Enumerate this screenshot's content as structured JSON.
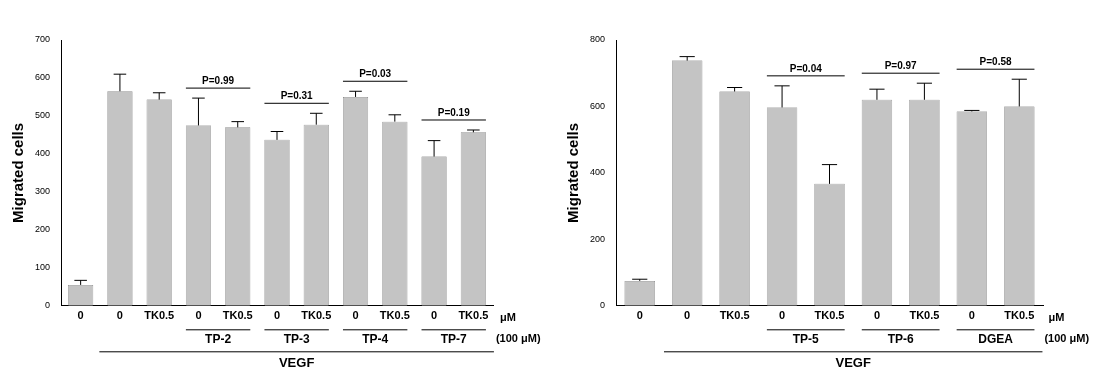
{
  "chart_data": [
    {
      "type": "bar",
      "y_label": "Migrated cells",
      "categories": [
        "0",
        "0",
        "TK0.5",
        "0",
        "TK0.5",
        "0",
        "TK0.5",
        "0",
        "TK0.5",
        "0",
        "TK0.5"
      ],
      "values": [
        55,
        565,
        543,
        475,
        470,
        437,
        477,
        550,
        485,
        393,
        457
      ],
      "errors": [
        12,
        45,
        18,
        72,
        15,
        22,
        30,
        15,
        18,
        42,
        6
      ],
      "groups": [
        null,
        null,
        null,
        "TP-2",
        "TP-2",
        "TP-3",
        "TP-3",
        "TP-4",
        "TP-4",
        "TP-7",
        "TP-7"
      ],
      "condition": [
        null,
        "VEGF",
        "VEGF",
        "VEGF",
        "VEGF",
        "VEGF",
        "VEGF",
        "VEGF",
        "VEGF",
        "VEGF",
        "VEGF"
      ],
      "annotations": [
        {
          "group": "TP-2",
          "text": "P=0.99"
        },
        {
          "group": "TP-3",
          "text": "P=0.31"
        },
        {
          "group": "TP-4",
          "text": "P=0.03"
        },
        {
          "group": "TP-7",
          "text": "P=0.19"
        }
      ],
      "units": "μM",
      "group_units": "(100 μM)",
      "ylim": [
        0,
        700
      ],
      "yticks": [
        0,
        100,
        200,
        300,
        400,
        500,
        600,
        700
      ],
      "color": "#c4c4c4",
      "grid": false
    },
    {
      "type": "bar",
      "y_label": "Migrated cells",
      "categories": [
        "0",
        "0",
        "TK0.5",
        "0",
        "TK0.5",
        "0",
        "TK0.5",
        "0",
        "TK0.5"
      ],
      "values": [
        75,
        738,
        645,
        597,
        367,
        620,
        620,
        585,
        600
      ],
      "errors": [
        5,
        12,
        12,
        65,
        58,
        32,
        50,
        3,
        82
      ],
      "groups": [
        null,
        null,
        null,
        "TP-5",
        "TP-5",
        "TP-6",
        "TP-6",
        "DGEA",
        "DGEA"
      ],
      "condition": [
        null,
        "VEGF",
        "VEGF",
        "VEGF",
        "VEGF",
        "VEGF",
        "VEGF",
        "VEGF",
        "VEGF"
      ],
      "annotations": [
        {
          "group": "TP-5",
          "text": "P=0.04"
        },
        {
          "group": "TP-6",
          "text": "P=0.97"
        },
        {
          "group": "DGEA",
          "text": "P=0.58"
        }
      ],
      "units": "μM",
      "group_units": "(100 μM)",
      "ylim": [
        0,
        800
      ],
      "yticks": [
        0,
        200,
        400,
        600,
        800
      ],
      "color": "#c4c4c4",
      "grid": false
    }
  ]
}
